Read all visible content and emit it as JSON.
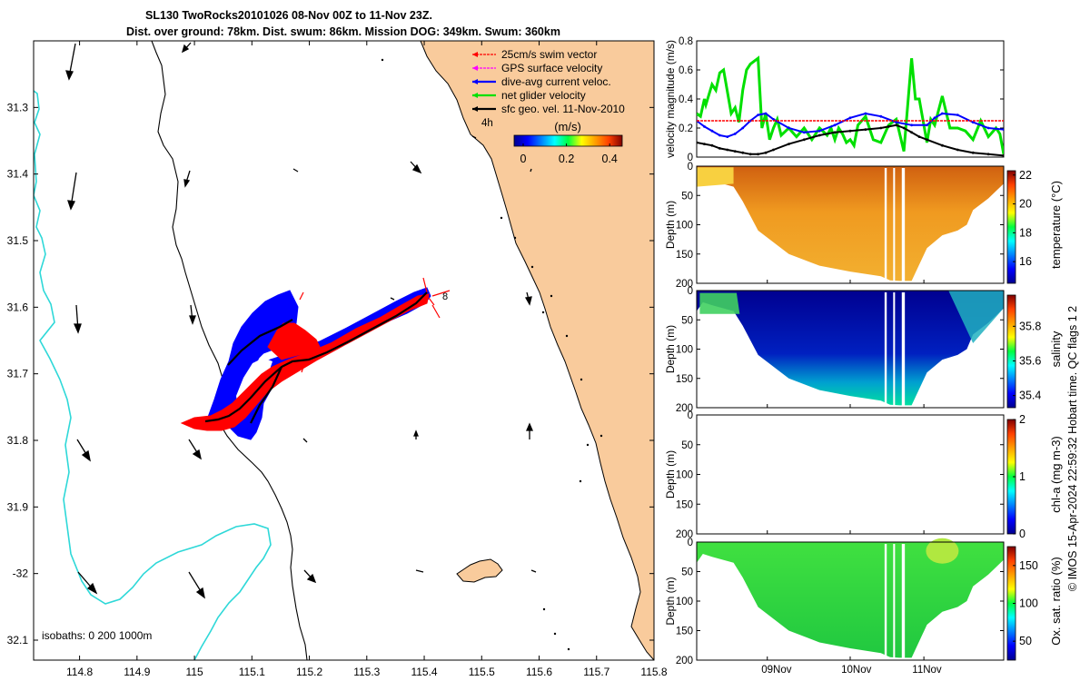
{
  "title": {
    "line1": "SL130 TwoRocks20101026 08-Nov 00Z to 11-Nov 23Z.",
    "line2": "Dist. over ground: 78km. Dist. swum: 86km. Mission DOG: 349km. Swum: 360km"
  },
  "footer_text": "© IMOS 15-Apr-2024 22:59:32 Hobart time. QC flags 1  2",
  "colors": {
    "land": "#f9cb9c",
    "isobath_200": "#2ed8d8",
    "coast": "#000000",
    "swim_vector": "#ff0000",
    "gps_velocity": "#ff00ff",
    "dive_avg_current": "#0000ff",
    "net_glider_velocity": "#00e000",
    "sfc_geo_vel": "#000000"
  },
  "map": {
    "lon_ticks": [
      "114.8",
      "114.9",
      "115",
      "115.1",
      "115.2",
      "115.3",
      "115.4",
      "115.5",
      "115.6",
      "115.7",
      "115.8"
    ],
    "lat_ticks": [
      "31.3",
      "31.4",
      "31.5",
      "31.6",
      "31.7",
      "31.8",
      "31.9",
      "-32",
      "32.1"
    ],
    "lon_range": [
      114.72,
      115.8
    ],
    "lat_range": [
      -32.13,
      -31.2
    ],
    "isobaths_label": "isobaths: 0   200  1000m",
    "time_marker_label": "4h",
    "end_marker_label": "8",
    "colorbar": {
      "unit": "(m/s)",
      "ticks": [
        "0",
        "0.2",
        "0.4"
      ],
      "range": [
        0,
        0.5
      ]
    },
    "legend": [
      {
        "label": "25cm/s swim vector",
        "color": "#ff0000",
        "style": "dashed"
      },
      {
        "label": "GPS surface velocity",
        "color": "#ff00ff",
        "style": "dashed"
      },
      {
        "label": "dive-avg current veloc.",
        "color": "#0000ff",
        "style": "solid"
      },
      {
        "label": "net glider velocity",
        "color": "#00e000",
        "style": "solid"
      },
      {
        "label": "sfc geo. vel. 11-Nov-2010",
        "color": "#000000",
        "style": "solid"
      }
    ]
  },
  "chart_data": [
    {
      "type": "line",
      "title": "",
      "xlabel": "",
      "ylabel": "velocity magnitude (m/s)",
      "ylim": [
        0,
        0.8
      ],
      "yticks": [
        "0",
        "0.2",
        "0.4",
        "0.6",
        "0.8"
      ],
      "xlim": [
        0,
        4
      ],
      "series": [
        {
          "name": "net glider velocity",
          "color": "#00e000",
          "x": [
            0,
            0.05,
            0.1,
            0.12,
            0.2,
            0.25,
            0.3,
            0.35,
            0.45,
            0.5,
            0.55,
            0.6,
            0.65,
            0.7,
            0.8,
            0.85,
            0.9,
            0.95,
            1.0,
            1.05,
            1.1,
            1.2,
            1.3,
            1.4,
            1.5,
            1.6,
            1.7,
            1.75,
            1.8,
            1.85,
            1.9,
            1.95,
            2.0,
            2.05,
            2.1,
            2.2,
            2.3,
            2.4,
            2.5,
            2.6,
            2.7,
            2.8,
            2.85,
            2.9,
            3.0,
            3.05,
            3.1,
            3.2,
            3.3,
            3.4,
            3.5,
            3.6,
            3.7,
            3.8,
            3.9,
            3.95,
            4.0
          ],
          "y": [
            0.3,
            0.28,
            0.4,
            0.36,
            0.5,
            0.46,
            0.58,
            0.6,
            0.3,
            0.34,
            0.24,
            0.46,
            0.6,
            0.64,
            0.68,
            0.2,
            0.3,
            0.12,
            0.2,
            0.26,
            0.15,
            0.2,
            0.14,
            0.2,
            0.12,
            0.2,
            0.15,
            0.2,
            0.12,
            0.2,
            0.16,
            0.1,
            0.12,
            0.08,
            0.22,
            0.28,
            0.12,
            0.1,
            0.22,
            0.26,
            0.04,
            0.68,
            0.4,
            0.4,
            0.1,
            0.26,
            0.22,
            0.42,
            0.2,
            0.2,
            0.18,
            0.12,
            0.25,
            0.14,
            0.2,
            0.16,
            0.02
          ]
        },
        {
          "name": "dive-avg current veloc.",
          "color": "#0000ff",
          "x": [
            0,
            0.1,
            0.2,
            0.3,
            0.4,
            0.5,
            0.6,
            0.7,
            0.8,
            0.9,
            1.0,
            1.2,
            1.4,
            1.6,
            1.8,
            2.0,
            2.2,
            2.4,
            2.6,
            2.8,
            3.0,
            3.1,
            3.2,
            3.4,
            3.6,
            3.8,
            4.0
          ],
          "y": [
            0.25,
            0.21,
            0.18,
            0.15,
            0.14,
            0.16,
            0.2,
            0.25,
            0.29,
            0.3,
            0.26,
            0.2,
            0.17,
            0.18,
            0.22,
            0.27,
            0.3,
            0.28,
            0.24,
            0.22,
            0.22,
            0.27,
            0.3,
            0.29,
            0.24,
            0.2,
            0.19
          ]
        },
        {
          "name": "sfc geo. vel.",
          "color": "#000000",
          "x": [
            0,
            0.1,
            0.2,
            0.3,
            0.4,
            0.5,
            0.6,
            0.7,
            0.8,
            0.9,
            1.0,
            1.2,
            1.4,
            1.6,
            1.8,
            2.0,
            2.2,
            2.4,
            2.5,
            2.6,
            2.7,
            2.8,
            2.9,
            3.0,
            3.2,
            3.4,
            3.6,
            3.8,
            4.0
          ],
          "y": [
            0.1,
            0.09,
            0.08,
            0.06,
            0.05,
            0.04,
            0.03,
            0.02,
            0.02,
            0.03,
            0.05,
            0.09,
            0.12,
            0.15,
            0.17,
            0.18,
            0.19,
            0.2,
            0.21,
            0.22,
            0.2,
            0.17,
            0.14,
            0.12,
            0.08,
            0.05,
            0.03,
            0.02,
            0.01
          ]
        },
        {
          "name": "swim vector",
          "color": "#ff0000",
          "style": "dashed",
          "x": [
            0,
            4
          ],
          "y": [
            0.25,
            0.25
          ]
        }
      ]
    },
    {
      "type": "heatmap",
      "ylabel": "Depth (m)",
      "yticks": [
        "0",
        "50",
        "100",
        "150",
        "200"
      ],
      "ylim": [
        0,
        200
      ],
      "colorbar_label": "temperature (°C)",
      "colorbar_ticks": [
        "22",
        "20",
        "18",
        "16"
      ],
      "colorbar_range": [
        14.5,
        22.3
      ]
    },
    {
      "type": "heatmap",
      "ylabel": "Depth (m)",
      "yticks": [
        "0",
        "50",
        "100",
        "150",
        "200"
      ],
      "ylim": [
        0,
        200
      ],
      "colorbar_label": "salinity",
      "colorbar_ticks": [
        "35.8",
        "35.6",
        "35.4"
      ],
      "colorbar_range": [
        35.33,
        35.98
      ]
    },
    {
      "type": "heatmap",
      "ylabel": "Depth (m)",
      "yticks": [
        "0",
        "50",
        "100",
        "150",
        "200"
      ],
      "ylim": [
        0,
        200
      ],
      "colorbar_label": "chl-a (mg m-3)",
      "colorbar_ticks": [
        "2",
        "1",
        "0"
      ],
      "colorbar_range": [
        0,
        2
      ]
    },
    {
      "type": "heatmap",
      "ylabel": "Depth (m)",
      "yticks": [
        "0",
        "50",
        "100",
        "150",
        "200"
      ],
      "ylim": [
        0,
        200
      ],
      "colorbar_label": "Ox. sat. ratio (%)",
      "colorbar_ticks": [
        "150",
        "100",
        "50"
      ],
      "colorbar_range": [
        25,
        175
      ],
      "xticks": [
        "09Nov",
        "10Nov",
        "11Nov"
      ]
    }
  ]
}
